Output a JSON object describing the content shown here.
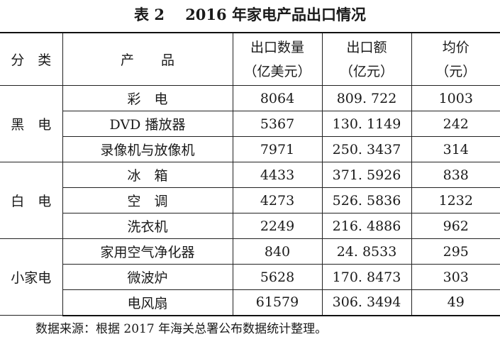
{
  "title": "表 2    2016 年家电产品出口情况",
  "headers": {
    "category": "分　类",
    "product": "产　　品",
    "quantity_line1": "出口数量",
    "quantity_line2": "（亿美元）",
    "value_line1": "出口额",
    "value_line2": "（亿元）",
    "price_line1": "均价",
    "price_line2": "（元）"
  },
  "groups": [
    {
      "category": "黑　电",
      "rows": [
        {
          "product": "彩　电",
          "quantity": "8064",
          "value": "809. 722",
          "price": "1003"
        },
        {
          "product": "DVD 播放器",
          "quantity": "5367",
          "value": "130. 1149",
          "price": "242"
        },
        {
          "product": "录像机与放像机",
          "quantity": "7971",
          "value": "250. 3437",
          "price": "314"
        }
      ]
    },
    {
      "category": "白　电",
      "rows": [
        {
          "product": "冰　箱",
          "quantity": "4433",
          "value": "371. 5926",
          "price": "838"
        },
        {
          "product": "空　调",
          "quantity": "4273",
          "value": "526. 5836",
          "price": "1232"
        },
        {
          "product": "洗衣机",
          "quantity": "2249",
          "value": "216. 4886",
          "price": "962"
        }
      ]
    },
    {
      "category": "小家电",
      "rows": [
        {
          "product": "家用空气净化器",
          "quantity": "840",
          "value": "24. 8533",
          "price": "295"
        },
        {
          "product": "微波炉",
          "quantity": "5628",
          "value": "170. 8473",
          "price": "303"
        },
        {
          "product": "电风扇",
          "quantity": "61579",
          "value": "306. 3494",
          "price": "49"
        }
      ]
    }
  ],
  "source_note": "数据来源：根据 2017 年海关总署公布数据统计整理。"
}
